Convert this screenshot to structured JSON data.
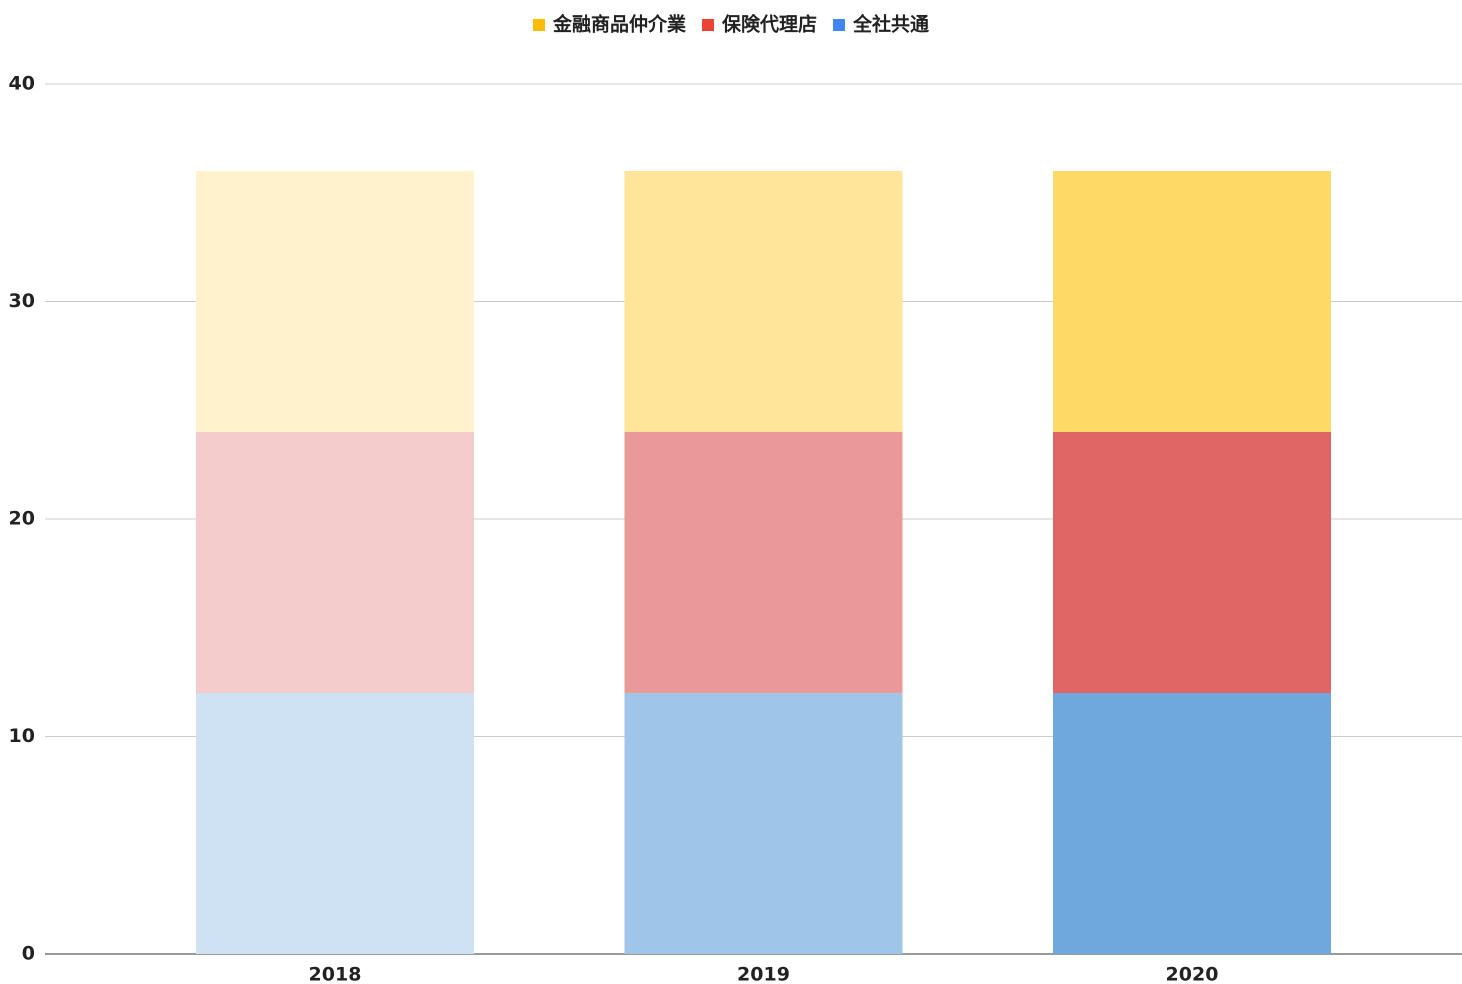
{
  "chart_data": {
    "type": "stacked_bar",
    "categories": [
      "2018",
      "2019",
      "2020"
    ],
    "series": [
      {
        "name": "金融商品仲介業",
        "color": "#fbbc04",
        "values": [
          12,
          12,
          12
        ],
        "colors": [
          "#fff2cc",
          "#ffe599",
          "#ffd966"
        ]
      },
      {
        "name": "保険代理店",
        "color": "#ea4335",
        "values": [
          12,
          12,
          12
        ],
        "colors": [
          "#f4cccc",
          "#ea9999",
          "#e06666"
        ]
      },
      {
        "name": "全社共通",
        "color": "#4285f4",
        "values": [
          12,
          12,
          12
        ],
        "colors": [
          "#cfe2f3",
          "#9fc5e8",
          "#6fa8dc"
        ]
      }
    ],
    "ylim": [
      0,
      40
    ],
    "yticks": [
      0,
      10,
      20,
      30,
      40
    ],
    "grid": true,
    "legend": "top"
  }
}
